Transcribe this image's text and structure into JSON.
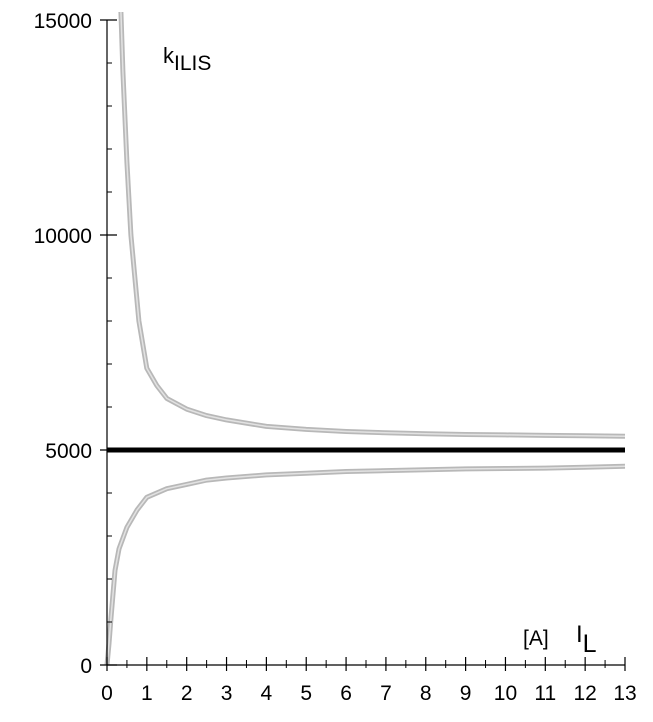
{
  "chart_data": {
    "type": "line",
    "title": "",
    "ylabel": "k",
    "ylabel_sub": "ILIS",
    "xlabel_unit": "[A]",
    "xlabel": "I",
    "xlabel_sub": "L",
    "xlim": [
      0,
      13
    ],
    "ylim": [
      0,
      15000
    ],
    "grid": false,
    "legend": "none",
    "x_ticks": [
      0,
      1,
      2,
      3,
      4,
      5,
      6,
      7,
      8,
      9,
      10,
      11,
      12,
      13
    ],
    "y_ticks": [
      0,
      5000,
      10000,
      15000
    ],
    "series": [
      {
        "color": "#000000",
        "style": "thick",
        "x": [
          0,
          13
        ],
        "y": [
          5000,
          5000
        ]
      },
      {
        "color": "#b8b8b8",
        "style": "band-upper",
        "x": [
          0.35,
          0.4,
          0.5,
          0.6,
          0.8,
          1,
          1.25,
          1.5,
          2,
          2.5,
          3,
          4,
          5,
          6,
          7,
          8,
          9,
          10,
          11,
          12,
          13
        ],
        "y": [
          15200,
          13800,
          11700,
          10000,
          8000,
          6900,
          6500,
          6200,
          5950,
          5800,
          5700,
          5550,
          5480,
          5430,
          5400,
          5380,
          5360,
          5350,
          5340,
          5330,
          5320
        ]
      },
      {
        "color": "#b8b8b8",
        "style": "band-lower",
        "x": [
          0,
          0.05,
          0.1,
          0.2,
          0.3,
          0.5,
          0.75,
          1,
          1.5,
          2,
          2.5,
          3,
          4,
          5,
          6,
          7,
          8,
          9,
          10,
          11,
          12,
          13
        ],
        "y": [
          0,
          500,
          1100,
          2200,
          2700,
          3200,
          3600,
          3900,
          4100,
          4200,
          4300,
          4350,
          4420,
          4460,
          4500,
          4520,
          4540,
          4560,
          4570,
          4580,
          4600,
          4620
        ]
      }
    ]
  }
}
